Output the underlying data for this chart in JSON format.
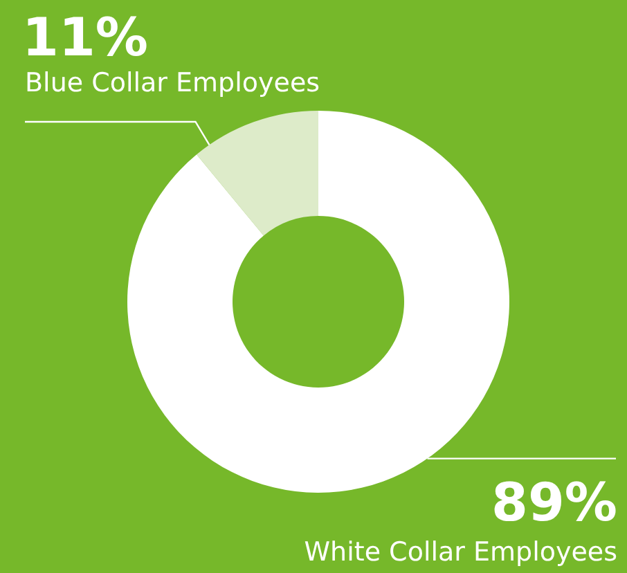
{
  "chart_data": {
    "type": "donut",
    "categories": [
      "Blue Collar Employees",
      "White Collar Employees"
    ],
    "values": [
      11,
      89
    ],
    "value_labels": [
      "11%",
      "89%"
    ],
    "colors": [
      "#ddebc9",
      "#ffffff"
    ]
  }
}
